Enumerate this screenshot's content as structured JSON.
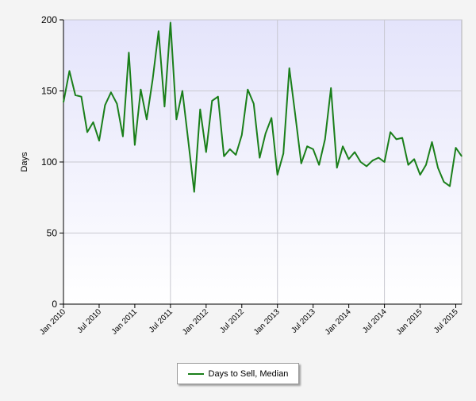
{
  "chart_data": {
    "type": "line",
    "title": "",
    "xlabel": "",
    "ylabel": "Days",
    "ylim": [
      0,
      200
    ],
    "yticks": [
      0,
      50,
      100,
      150,
      200
    ],
    "xticks": [
      "Jan 2010",
      "Jul 2010",
      "Jan 2011",
      "Jul 2011",
      "Jan 2012",
      "Jul 2012",
      "Jan 2013",
      "Jul 2013",
      "Jan 2014",
      "Jul 2014",
      "Jan 2015",
      "Jul 2015"
    ],
    "x_start": "Jan 2010",
    "x_end": "Aug 2015",
    "grid": true,
    "legend_position": "bottom",
    "series": [
      {
        "name": "Days to Sell, Median",
        "color": "#1a7f1a",
        "x": [
          "Jan 2010",
          "Feb 2010",
          "Mar 2010",
          "Apr 2010",
          "May 2010",
          "Jun 2010",
          "Jul 2010",
          "Aug 2010",
          "Sep 2010",
          "Oct 2010",
          "Nov 2010",
          "Dec 2010",
          "Jan 2011",
          "Feb 2011",
          "Mar 2011",
          "Apr 2011",
          "May 2011",
          "Jun 2011",
          "Jul 2011",
          "Aug 2011",
          "Sep 2011",
          "Oct 2011",
          "Nov 2011",
          "Dec 2011",
          "Jan 2012",
          "Feb 2012",
          "Mar 2012",
          "Apr 2012",
          "May 2012",
          "Jun 2012",
          "Jul 2012",
          "Aug 2012",
          "Sep 2012",
          "Oct 2012",
          "Nov 2012",
          "Dec 2012",
          "Jan 2013",
          "Feb 2013",
          "Mar 2013",
          "Apr 2013",
          "May 2013",
          "Jun 2013",
          "Jul 2013",
          "Aug 2013",
          "Sep 2013",
          "Oct 2013",
          "Nov 2013",
          "Dec 2013",
          "Jan 2014",
          "Feb 2014",
          "Mar 2014",
          "Apr 2014",
          "May 2014",
          "Jun 2014",
          "Jul 2014",
          "Aug 2014",
          "Sep 2014",
          "Oct 2014",
          "Nov 2014",
          "Dec 2014",
          "Jan 2015",
          "Feb 2015",
          "Mar 2015",
          "Apr 2015",
          "May 2015",
          "Jun 2015",
          "Jul 2015",
          "Aug 2015"
        ],
        "values": [
          142,
          164,
          147,
          146,
          121,
          128,
          115,
          140,
          149,
          141,
          118,
          177,
          112,
          151,
          130,
          158,
          192,
          139,
          198,
          130,
          150,
          115,
          79,
          137,
          107,
          143,
          146,
          104,
          109,
          105,
          119,
          151,
          141,
          103,
          120,
          131,
          91,
          106,
          166,
          133,
          99,
          111,
          109,
          98,
          116,
          152,
          96,
          111,
          102,
          107,
          100,
          97,
          101,
          103,
          100,
          121,
          116,
          117,
          98,
          102,
          91,
          98,
          114,
          96,
          86,
          83,
          110,
          104
        ]
      }
    ]
  }
}
